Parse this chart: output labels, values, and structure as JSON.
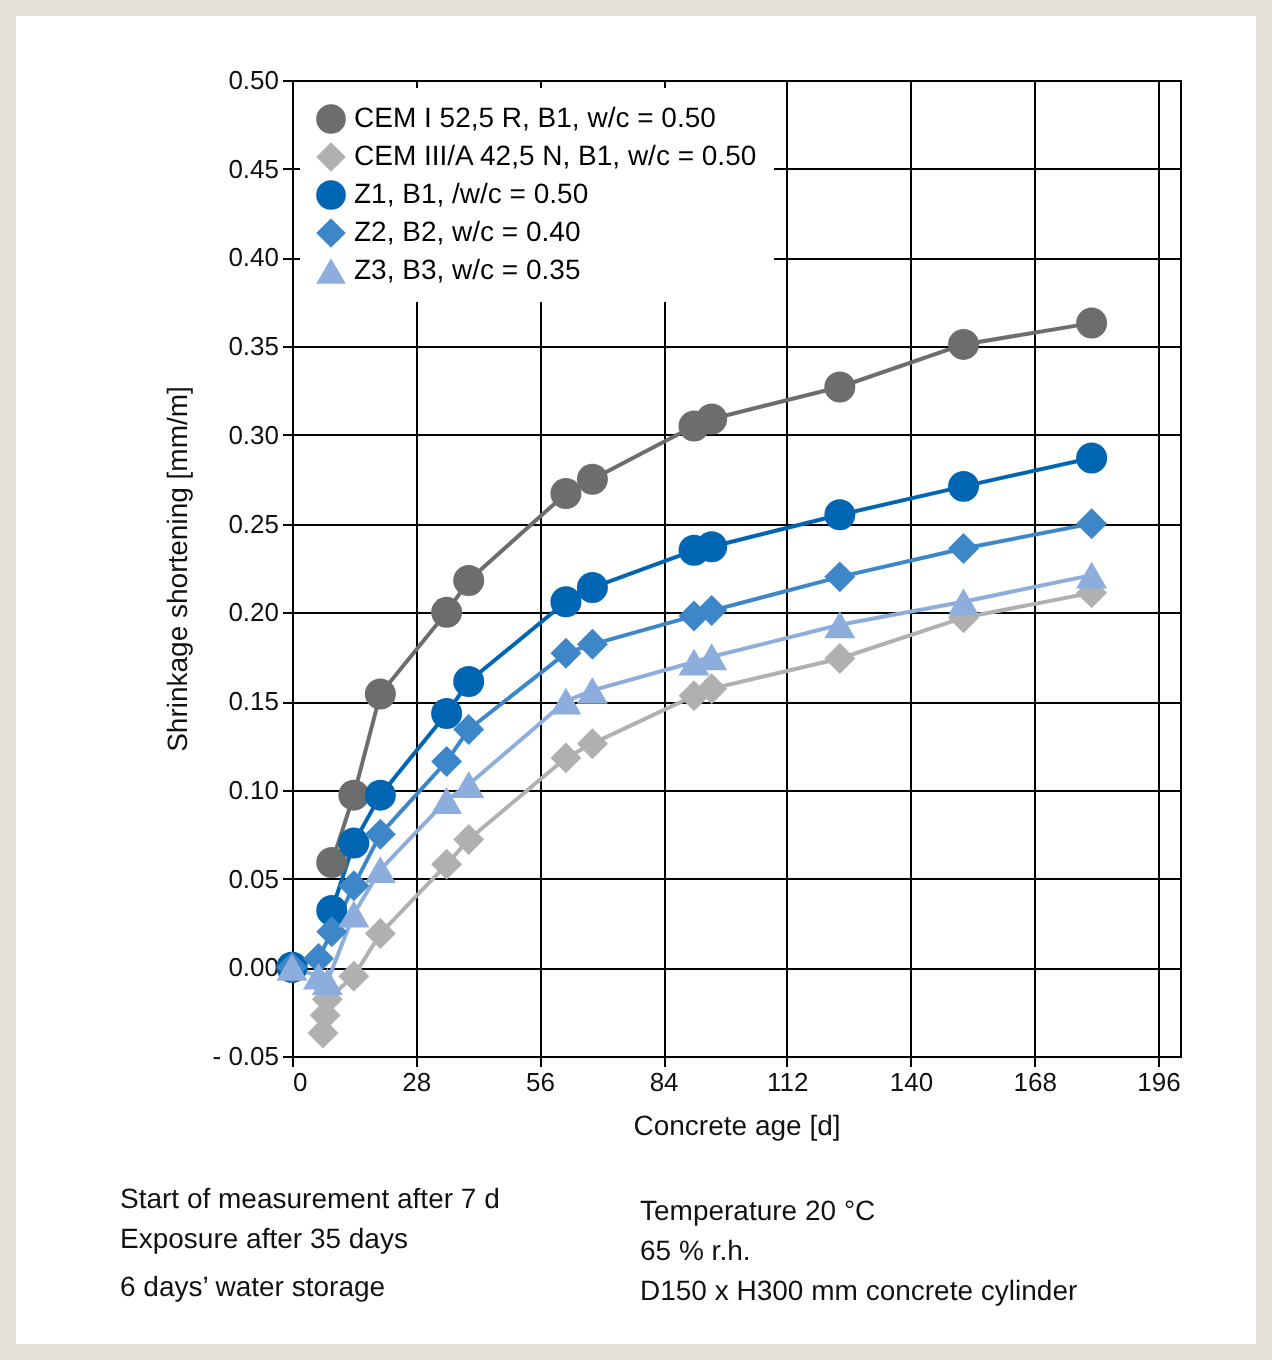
{
  "chart_data": {
    "type": "line",
    "xlabel": "Concrete age [d]",
    "ylabel": "Shrinkage shortening [mm/m]",
    "xlim": [
      0,
      201
    ],
    "xticks": [
      0,
      28,
      56,
      84,
      112,
      140,
      168,
      196
    ],
    "ylim": [
      -0.05,
      0.5
    ],
    "yticks": [
      {
        "value": -0.05,
        "label": "- 0.05"
      },
      {
        "value": 0,
        "label": "0.00"
      },
      {
        "value": 0.05,
        "label": "0.05"
      },
      {
        "value": 0.1,
        "label": "0.10"
      },
      {
        "value": 0.15,
        "label": "0.15"
      },
      {
        "value": 0.2,
        "label": "0.20"
      },
      {
        "value": 0.25,
        "label": "0.25"
      },
      {
        "value": 0.3,
        "label": "0.30"
      },
      {
        "value": 0.35,
        "label": "0.35"
      },
      {
        "value": 0.4,
        "label": "0.40"
      },
      {
        "value": 0.45,
        "label": "0.45"
      },
      {
        "value": 0.5,
        "label": "0.50"
      }
    ],
    "grid": true,
    "legend": "top left",
    "line_style": "solid",
    "series": [
      {
        "name": "CEM I 52,5 R, B1, w/c = 0.50",
        "color": "#6d6d6d",
        "marker": "circle",
        "x": [
          0,
          4,
          9,
          14,
          20,
          35,
          40,
          62,
          68,
          91,
          95,
          124,
          152,
          181
        ],
        "values": [
          0,
          null,
          0.059,
          0.097,
          0.154,
          0.2,
          0.218,
          0.267,
          0.275,
          0.305,
          0.309,
          0.327,
          0.351,
          0.363
        ]
      },
      {
        "name": "CEM III/A 42,5 N, B1, w/c = 0.50",
        "color": "#b0b0b0",
        "marker": "diamond",
        "x": [
          7,
          7.5,
          8,
          14,
          20,
          35,
          40,
          62,
          68,
          91,
          95,
          124,
          152,
          181
        ],
        "values": [
          -0.037,
          -0.027,
          -0.018,
          -0.005,
          0.019,
          0.058,
          0.072,
          0.118,
          0.126,
          0.153,
          0.157,
          0.174,
          0.197,
          0.211
        ]
      },
      {
        "name": "Z1, B1, /w/c = 0.50",
        "color": "#0066b3",
        "marker": "circle",
        "x": [
          0,
          6,
          9,
          14,
          20,
          35,
          40,
          62,
          68,
          91,
          95,
          124,
          152,
          181
        ],
        "values": [
          0,
          null,
          0.032,
          0.07,
          0.097,
          0.143,
          0.161,
          0.206,
          0.214,
          0.235,
          0.237,
          0.255,
          0.271,
          0.287
        ]
      },
      {
        "name": "Z2, B2, w/c = 0.40",
        "color": "#3d87c9",
        "marker": "diamond",
        "x": [
          0,
          6,
          9,
          14,
          20,
          35,
          40,
          62,
          68,
          91,
          95,
          124,
          152,
          181
        ],
        "values": [
          0,
          0.005,
          0.02,
          0.046,
          0.075,
          0.116,
          0.134,
          0.177,
          0.182,
          0.198,
          0.201,
          0.22,
          0.236,
          0.25
        ]
      },
      {
        "name": "Z3, B3, w/c = 0.35",
        "color": "#8daedc",
        "marker": "triangle",
        "x": [
          0,
          6,
          8,
          14,
          20,
          35,
          40,
          62,
          68,
          91,
          95,
          124,
          152,
          181
        ],
        "values": [
          0,
          -0.005,
          -0.008,
          0.03,
          0.055,
          0.094,
          0.103,
          0.15,
          0.156,
          0.172,
          0.175,
          0.193,
          0.206,
          0.221
        ]
      }
    ],
    "annotations": [
      "Start of measurement after 7 d",
      "Exposure after 35 days",
      "6 days’ water storage",
      "Temperature 20 °C",
      "65 % r.h.",
      "D150 x H300 mm concrete cylinder"
    ]
  }
}
